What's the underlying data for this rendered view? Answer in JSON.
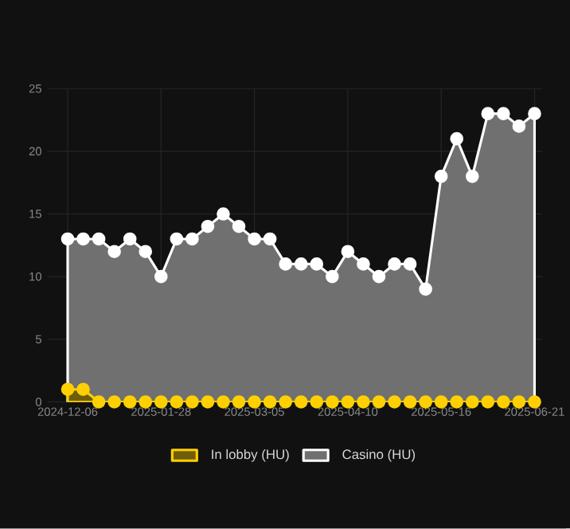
{
  "chart_data": {
    "type": "area",
    "categories": [
      "2024-12-06",
      null,
      null,
      null,
      null,
      null,
      "2025-01-28",
      null,
      null,
      null,
      null,
      null,
      "2025-03-05",
      null,
      null,
      null,
      null,
      null,
      "2025-04-10",
      null,
      null,
      null,
      null,
      null,
      "2025-05-16",
      null,
      null,
      null,
      null,
      null,
      "2025-06-21"
    ],
    "series": [
      {
        "name": "In lobby (HU)",
        "color": "#ffd000",
        "values": [
          1,
          1,
          0,
          0,
          0,
          0,
          0,
          0,
          0,
          0,
          0,
          0,
          0,
          0,
          0,
          0,
          0,
          0,
          0,
          0,
          0,
          0,
          0,
          0,
          0,
          0,
          0,
          0,
          0,
          0,
          0
        ]
      },
      {
        "name": "Casino (HU)",
        "color": "#ffffff",
        "values": [
          13,
          13,
          13,
          12,
          13,
          12,
          10,
          13,
          13,
          14,
          15,
          14,
          13,
          13,
          11,
          11,
          11,
          10,
          12,
          11,
          10,
          11,
          11,
          9,
          18,
          21,
          18,
          23,
          23,
          22,
          23
        ]
      }
    ],
    "ylim": [
      0,
      25
    ],
    "yticks": [
      0,
      5,
      10,
      15,
      20,
      25
    ],
    "grid": true,
    "legend": "bottom",
    "marker": "circle"
  }
}
